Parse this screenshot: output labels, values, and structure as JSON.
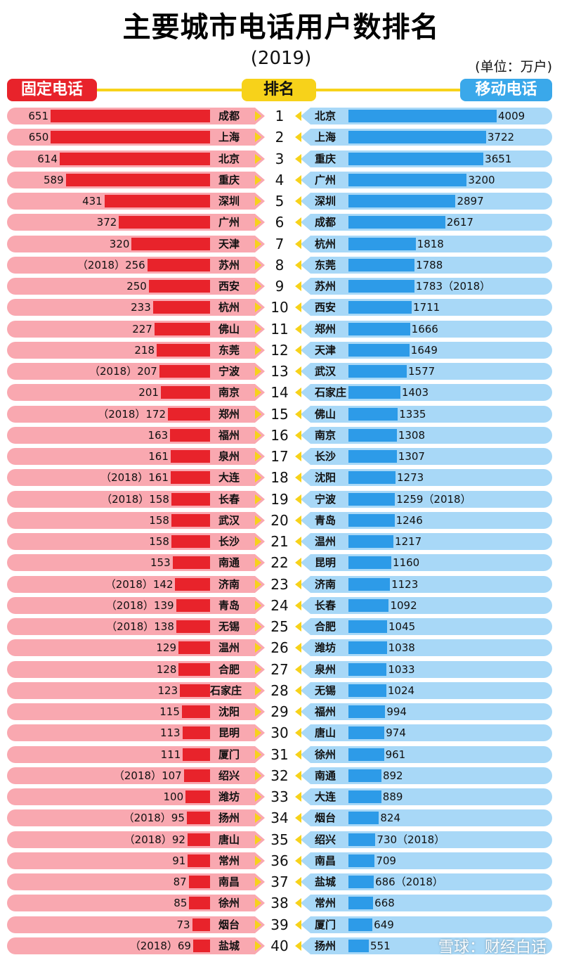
{
  "header": {
    "title": "主要城市电话用户数排名",
    "subtitle": "(2019)",
    "unit": "(单位：万户)",
    "fixed_label": "固定电话",
    "rank_label": "排名",
    "mobile_label": "移动电话"
  },
  "watermark": "雪球：财经白话",
  "chart_data": {
    "type": "bar",
    "title": "主要城市电话用户数排名",
    "subtitle": "(2019)",
    "unit": "(单位：万户)",
    "colors": {
      "fixed": "#e8232b",
      "fixed_bg": "#f9a8b0",
      "mobile": "#2d9be8",
      "mobile_bg": "#a8d8f7",
      "accent": "#f7d21a"
    },
    "series": [
      {
        "name": "固定电话",
        "rows": [
          {
            "rank": 1,
            "city": "成都",
            "value": 651,
            "label": "651"
          },
          {
            "rank": 2,
            "city": "上海",
            "value": 650,
            "label": "650"
          },
          {
            "rank": 3,
            "city": "北京",
            "value": 614,
            "label": "614"
          },
          {
            "rank": 4,
            "city": "重庆",
            "value": 589,
            "label": "589"
          },
          {
            "rank": 5,
            "city": "深圳",
            "value": 431,
            "label": "431"
          },
          {
            "rank": 6,
            "city": "广州",
            "value": 372,
            "label": "372"
          },
          {
            "rank": 7,
            "city": "天津",
            "value": 320,
            "label": "320"
          },
          {
            "rank": 8,
            "city": "苏州",
            "value": 256,
            "label": "（2018）256"
          },
          {
            "rank": 9,
            "city": "西安",
            "value": 250,
            "label": "250"
          },
          {
            "rank": 10,
            "city": "杭州",
            "value": 233,
            "label": "233"
          },
          {
            "rank": 11,
            "city": "佛山",
            "value": 227,
            "label": "227"
          },
          {
            "rank": 12,
            "city": "东莞",
            "value": 218,
            "label": "218"
          },
          {
            "rank": 13,
            "city": "宁波",
            "value": 207,
            "label": "（2018）207"
          },
          {
            "rank": 14,
            "city": "南京",
            "value": 201,
            "label": "201"
          },
          {
            "rank": 15,
            "city": "郑州",
            "value": 172,
            "label": "（2018）172"
          },
          {
            "rank": 16,
            "city": "福州",
            "value": 163,
            "label": "163"
          },
          {
            "rank": 17,
            "city": "泉州",
            "value": 161,
            "label": "161"
          },
          {
            "rank": 18,
            "city": "大连",
            "value": 161,
            "label": "（2018）161"
          },
          {
            "rank": 19,
            "city": "长春",
            "value": 158,
            "label": "（2018）158"
          },
          {
            "rank": 20,
            "city": "武汉",
            "value": 158,
            "label": "158"
          },
          {
            "rank": 21,
            "city": "长沙",
            "value": 158,
            "label": "158"
          },
          {
            "rank": 22,
            "city": "南通",
            "value": 153,
            "label": "153"
          },
          {
            "rank": 23,
            "city": "济南",
            "value": 142,
            "label": "（2018）142"
          },
          {
            "rank": 24,
            "city": "青岛",
            "value": 139,
            "label": "（2018）139"
          },
          {
            "rank": 25,
            "city": "无锡",
            "value": 138,
            "label": "（2018）138"
          },
          {
            "rank": 26,
            "city": "温州",
            "value": 129,
            "label": "129"
          },
          {
            "rank": 27,
            "city": "合肥",
            "value": 128,
            "label": "128"
          },
          {
            "rank": 28,
            "city": "石家庄",
            "value": 123,
            "label": "123"
          },
          {
            "rank": 29,
            "city": "沈阳",
            "value": 115,
            "label": "115"
          },
          {
            "rank": 30,
            "city": "昆明",
            "value": 113,
            "label": "113"
          },
          {
            "rank": 31,
            "city": "厦门",
            "value": 111,
            "label": "111"
          },
          {
            "rank": 32,
            "city": "绍兴",
            "value": 107,
            "label": "（2018）107"
          },
          {
            "rank": 33,
            "city": "潍坊",
            "value": 100,
            "label": "100"
          },
          {
            "rank": 34,
            "city": "扬州",
            "value": 95,
            "label": "（2018）95"
          },
          {
            "rank": 35,
            "city": "唐山",
            "value": 92,
            "label": "（2018）92"
          },
          {
            "rank": 36,
            "city": "常州",
            "value": 91,
            "label": "91"
          },
          {
            "rank": 37,
            "city": "南昌",
            "value": 87,
            "label": "87"
          },
          {
            "rank": 38,
            "city": "徐州",
            "value": 85,
            "label": "85"
          },
          {
            "rank": 39,
            "city": "烟台",
            "value": 73,
            "label": "73"
          },
          {
            "rank": 40,
            "city": "盐城",
            "value": 69,
            "label": "（2018）69"
          }
        ]
      },
      {
        "name": "移动电话",
        "rows": [
          {
            "rank": 1,
            "city": "北京",
            "value": 4009,
            "label": "4009"
          },
          {
            "rank": 2,
            "city": "上海",
            "value": 3722,
            "label": "3722"
          },
          {
            "rank": 3,
            "city": "重庆",
            "value": 3651,
            "label": "3651"
          },
          {
            "rank": 4,
            "city": "广州",
            "value": 3200,
            "label": "3200"
          },
          {
            "rank": 5,
            "city": "深圳",
            "value": 2897,
            "label": "2897"
          },
          {
            "rank": 6,
            "city": "成都",
            "value": 2617,
            "label": "2617"
          },
          {
            "rank": 7,
            "city": "杭州",
            "value": 1818,
            "label": "1818"
          },
          {
            "rank": 8,
            "city": "东莞",
            "value": 1788,
            "label": "1788"
          },
          {
            "rank": 9,
            "city": "苏州",
            "value": 1783,
            "label": "1783（2018）"
          },
          {
            "rank": 10,
            "city": "西安",
            "value": 1711,
            "label": "1711"
          },
          {
            "rank": 11,
            "city": "郑州",
            "value": 1666,
            "label": "1666"
          },
          {
            "rank": 12,
            "city": "天津",
            "value": 1649,
            "label": "1649"
          },
          {
            "rank": 13,
            "city": "武汉",
            "value": 1577,
            "label": "1577"
          },
          {
            "rank": 14,
            "city": "石家庄",
            "value": 1403,
            "label": "1403"
          },
          {
            "rank": 15,
            "city": "佛山",
            "value": 1335,
            "label": "1335"
          },
          {
            "rank": 16,
            "city": "南京",
            "value": 1308,
            "label": "1308"
          },
          {
            "rank": 17,
            "city": "长沙",
            "value": 1307,
            "label": "1307"
          },
          {
            "rank": 18,
            "city": "沈阳",
            "value": 1273,
            "label": "1273"
          },
          {
            "rank": 19,
            "city": "宁波",
            "value": 1259,
            "label": "1259（2018）"
          },
          {
            "rank": 20,
            "city": "青岛",
            "value": 1246,
            "label": "1246"
          },
          {
            "rank": 21,
            "city": "温州",
            "value": 1217,
            "label": "1217"
          },
          {
            "rank": 22,
            "city": "昆明",
            "value": 1160,
            "label": "1160"
          },
          {
            "rank": 23,
            "city": "济南",
            "value": 1123,
            "label": "1123"
          },
          {
            "rank": 24,
            "city": "长春",
            "value": 1092,
            "label": "1092"
          },
          {
            "rank": 25,
            "city": "合肥",
            "value": 1045,
            "label": "1045"
          },
          {
            "rank": 26,
            "city": "潍坊",
            "value": 1038,
            "label": "1038"
          },
          {
            "rank": 27,
            "city": "泉州",
            "value": 1033,
            "label": "1033"
          },
          {
            "rank": 28,
            "city": "无锡",
            "value": 1024,
            "label": "1024"
          },
          {
            "rank": 29,
            "city": "福州",
            "value": 994,
            "label": "994"
          },
          {
            "rank": 30,
            "city": "唐山",
            "value": 974,
            "label": "974"
          },
          {
            "rank": 31,
            "city": "徐州",
            "value": 961,
            "label": "961"
          },
          {
            "rank": 32,
            "city": "南通",
            "value": 892,
            "label": "892"
          },
          {
            "rank": 33,
            "city": "大连",
            "value": 889,
            "label": "889"
          },
          {
            "rank": 34,
            "city": "烟台",
            "value": 824,
            "label": "824"
          },
          {
            "rank": 35,
            "city": "绍兴",
            "value": 730,
            "label": "730（2018）"
          },
          {
            "rank": 36,
            "city": "南昌",
            "value": 709,
            "label": "709"
          },
          {
            "rank": 37,
            "city": "盐城",
            "value": 686,
            "label": "686（2018）"
          },
          {
            "rank": 38,
            "city": "常州",
            "value": 668,
            "label": "668"
          },
          {
            "rank": 39,
            "city": "厦门",
            "value": 649,
            "label": "649"
          },
          {
            "rank": 40,
            "city": "扬州",
            "value": 551,
            "label": "551"
          }
        ]
      }
    ]
  }
}
